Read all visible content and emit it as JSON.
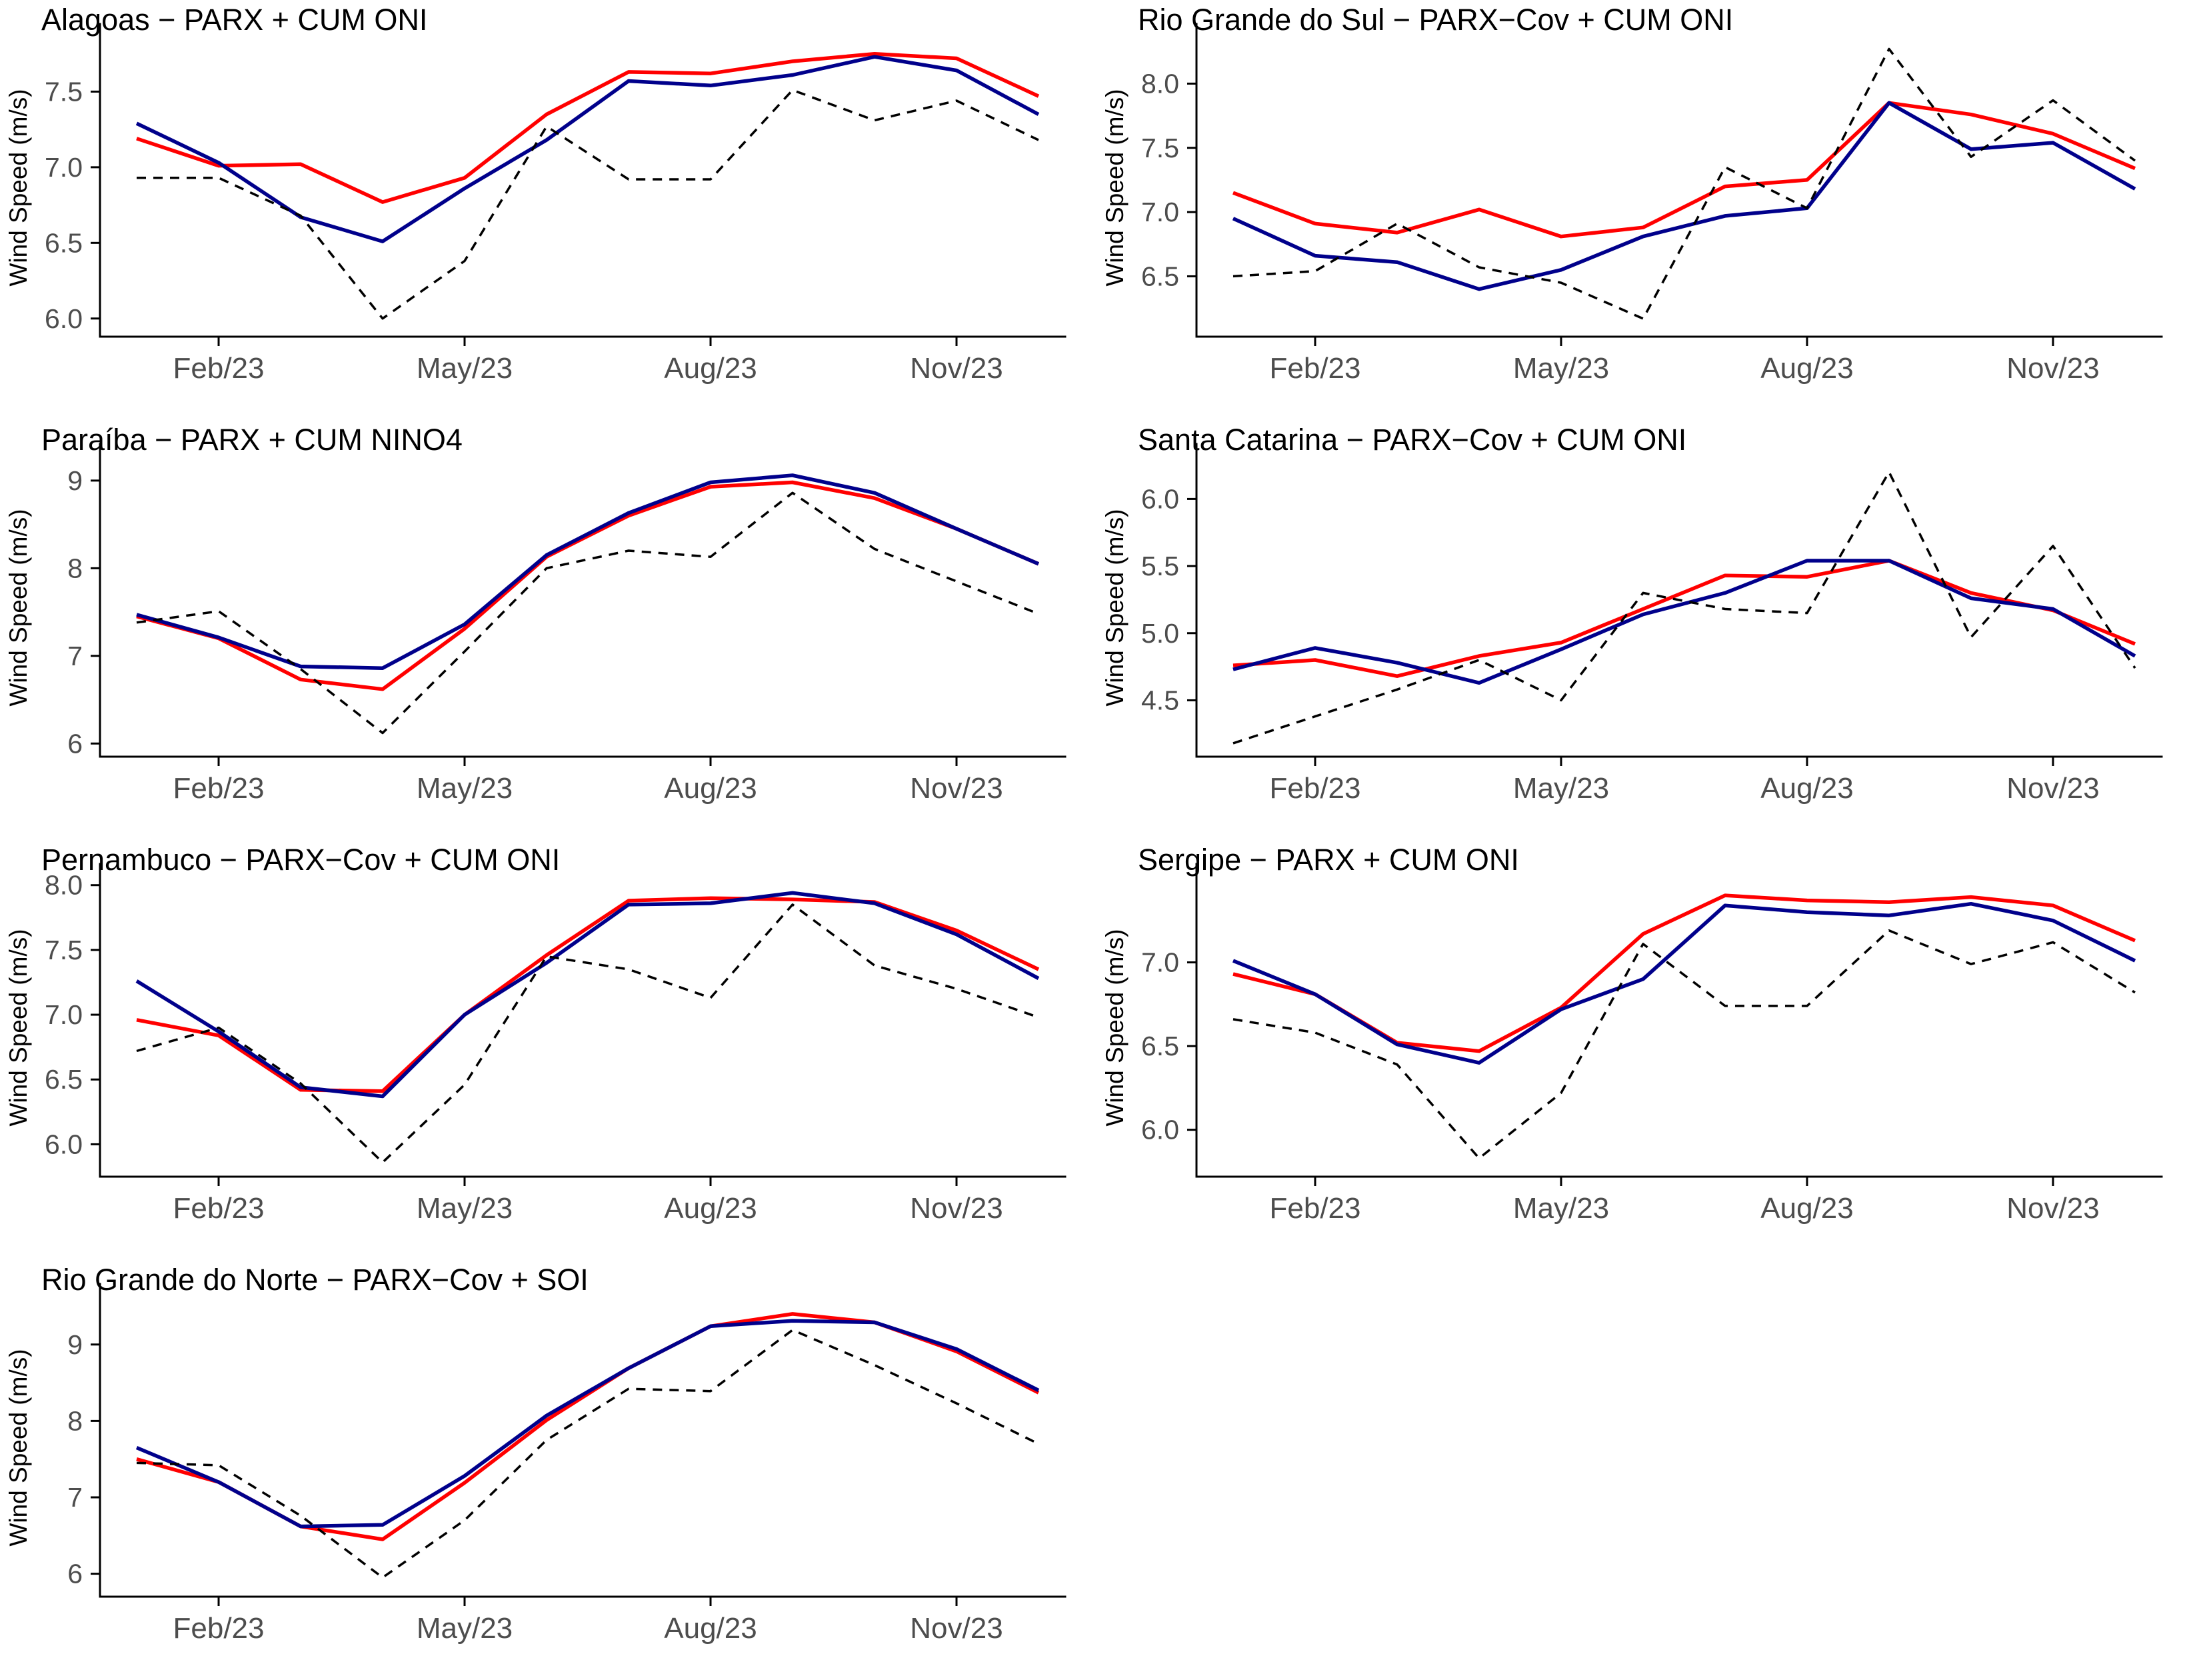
{
  "page": {
    "background": "#FFFFFF",
    "layout": "4x2 grid of line charts, last cell empty"
  },
  "colors": {
    "red_series": "#FF0000",
    "blue_series": "#00008B",
    "dashed_series": "#000000",
    "tick_text": "#4D4D4D",
    "title_text": "#000000",
    "axis_line": "#000000",
    "background": "#FFFFFF"
  },
  "chart_data": [
    {
      "id": "alagoas",
      "type": "line",
      "title": "Alagoas − PARX + CUM ONI",
      "ylabel": "Wind Speed (m/s)",
      "x": [
        "Jan/23",
        "Feb/23",
        "Mar/23",
        "Apr/23",
        "May/23",
        "Jun/23",
        "Jul/23",
        "Aug/23",
        "Sep/23",
        "Oct/23",
        "Nov/23",
        "Dec/23"
      ],
      "x_tick_indices": [
        1,
        4,
        7,
        10
      ],
      "x_tick_labels": [
        "Feb/23",
        "May/23",
        "Aug/23",
        "Nov/23"
      ],
      "ylim": [
        5.88,
        7.85
      ],
      "y_ticks": {
        "values": [
          6.0,
          6.5,
          7.0,
          7.5
        ],
        "labels": [
          "6.0",
          "6.5",
          "7.0",
          "7.5"
        ]
      },
      "grid": false,
      "legend": null,
      "series": [
        {
          "name": "red-solid",
          "color": "#FF0000",
          "style": "solid",
          "values": [
            7.19,
            7.01,
            7.02,
            6.77,
            6.93,
            7.35,
            7.63,
            7.62,
            7.7,
            7.75,
            7.72,
            7.47
          ]
        },
        {
          "name": "blue-solid",
          "color": "#00008B",
          "style": "solid",
          "values": [
            7.29,
            7.03,
            6.67,
            6.51,
            6.86,
            7.18,
            7.57,
            7.54,
            7.61,
            7.73,
            7.64,
            7.35
          ]
        },
        {
          "name": "black-dashed",
          "color": "#000000",
          "style": "dashed",
          "values": [
            6.93,
            6.93,
            6.68,
            6.0,
            6.38,
            7.27,
            6.92,
            6.92,
            7.51,
            7.31,
            7.44,
            7.18
          ]
        }
      ]
    },
    {
      "id": "rio-grande-do-sul",
      "type": "line",
      "title": "Rio Grande do Sul − PARX−Cov + CUM ONI",
      "ylabel": "Wind Speed (m/s)",
      "x": [
        "Jan/23",
        "Feb/23",
        "Mar/23",
        "Apr/23",
        "May/23",
        "Jun/23",
        "Jul/23",
        "Aug/23",
        "Sep/23",
        "Oct/23",
        "Nov/23",
        "Dec/23"
      ],
      "x_tick_indices": [
        1,
        4,
        7,
        10
      ],
      "x_tick_labels": [
        "Feb/23",
        "May/23",
        "Aug/23",
        "Nov/23"
      ],
      "ylim": [
        6.03,
        8.35
      ],
      "y_ticks": {
        "values": [
          6.5,
          7.0,
          7.5,
          8.0
        ],
        "labels": [
          "6.5",
          "7.0",
          "7.5",
          "8.0"
        ]
      },
      "grid": false,
      "legend": null,
      "series": [
        {
          "name": "red-solid",
          "color": "#FF0000",
          "style": "solid",
          "values": [
            7.15,
            6.91,
            6.84,
            7.02,
            6.81,
            6.88,
            7.2,
            7.25,
            7.85,
            7.76,
            7.61,
            7.34
          ]
        },
        {
          "name": "blue-solid",
          "color": "#00008B",
          "style": "solid",
          "values": [
            6.95,
            6.66,
            6.61,
            6.4,
            6.55,
            6.81,
            6.97,
            7.03,
            7.85,
            7.49,
            7.54,
            7.18
          ]
        },
        {
          "name": "black-dashed",
          "color": "#000000",
          "style": "dashed",
          "values": [
            6.5,
            6.54,
            6.91,
            6.57,
            6.45,
            6.17,
            7.35,
            7.03,
            8.27,
            7.43,
            7.87,
            7.4
          ]
        }
      ]
    },
    {
      "id": "paraiba",
      "type": "line",
      "title": "Paraíba − PARX + CUM NINO4",
      "ylabel": "Wind Speed (m/s)",
      "x": [
        "Jan/23",
        "Feb/23",
        "Mar/23",
        "Apr/23",
        "May/23",
        "Jun/23",
        "Jul/23",
        "Aug/23",
        "Sep/23",
        "Oct/23",
        "Nov/23",
        "Dec/23"
      ],
      "x_tick_indices": [
        1,
        4,
        7,
        10
      ],
      "x_tick_labels": [
        "Feb/23",
        "May/23",
        "Aug/23",
        "Nov/23"
      ],
      "ylim": [
        5.85,
        9.25
      ],
      "y_ticks": {
        "values": [
          6,
          7,
          8,
          9
        ],
        "labels": [
          "6",
          "7",
          "8",
          "9"
        ]
      },
      "grid": false,
      "legend": null,
      "series": [
        {
          "name": "red-solid",
          "color": "#FF0000",
          "style": "solid",
          "values": [
            7.45,
            7.2,
            6.73,
            6.62,
            7.31,
            8.13,
            8.6,
            8.93,
            8.98,
            8.8,
            8.45,
            8.05
          ]
        },
        {
          "name": "blue-solid",
          "color": "#00008B",
          "style": "solid",
          "values": [
            7.47,
            7.21,
            6.88,
            6.86,
            7.36,
            8.15,
            8.63,
            8.98,
            9.06,
            8.86,
            8.45,
            8.05
          ]
        },
        {
          "name": "black-dashed",
          "color": "#000000",
          "style": "dashed",
          "values": [
            7.38,
            7.51,
            6.85,
            6.12,
            7.05,
            8.0,
            8.2,
            8.13,
            8.86,
            8.22,
            7.85,
            7.48
          ]
        }
      ]
    },
    {
      "id": "santa-catarina",
      "type": "line",
      "title": "Santa Catarina − PARX−Cov + CUM ONI",
      "ylabel": "Wind Speed (m/s)",
      "x": [
        "Jan/23",
        "Feb/23",
        "Mar/23",
        "Apr/23",
        "May/23",
        "Jun/23",
        "Jul/23",
        "Aug/23",
        "Sep/23",
        "Oct/23",
        "Nov/23",
        "Dec/23"
      ],
      "x_tick_indices": [
        1,
        4,
        7,
        10
      ],
      "x_tick_labels": [
        "Feb/23",
        "May/23",
        "Aug/23",
        "Nov/23"
      ],
      "ylim": [
        4.08,
        6.3
      ],
      "y_ticks": {
        "values": [
          4.5,
          5.0,
          5.5,
          6.0
        ],
        "labels": [
          "4.5",
          "5.0",
          "5.5",
          "6.0"
        ]
      },
      "grid": false,
      "legend": null,
      "series": [
        {
          "name": "red-solid",
          "color": "#FF0000",
          "style": "solid",
          "values": [
            4.76,
            4.8,
            4.68,
            4.83,
            4.93,
            5.18,
            5.43,
            5.42,
            5.54,
            5.3,
            5.17,
            4.92
          ]
        },
        {
          "name": "blue-solid",
          "color": "#00008B",
          "style": "solid",
          "values": [
            4.73,
            4.89,
            4.78,
            4.63,
            4.88,
            5.14,
            5.3,
            5.54,
            5.54,
            5.26,
            5.18,
            4.83
          ]
        },
        {
          "name": "black-dashed",
          "color": "#000000",
          "style": "dashed",
          "values": [
            4.18,
            4.38,
            4.58,
            4.8,
            4.5,
            5.3,
            5.18,
            5.15,
            6.2,
            4.97,
            5.65,
            4.74
          ]
        }
      ]
    },
    {
      "id": "pernambuco",
      "type": "line",
      "title": "Pernambuco − PARX−Cov + CUM ONI",
      "ylabel": "Wind Speed (m/s)",
      "x": [
        "Jan/23",
        "Feb/23",
        "Mar/23",
        "Apr/23",
        "May/23",
        "Jun/23",
        "Jul/23",
        "Aug/23",
        "Sep/23",
        "Oct/23",
        "Nov/23",
        "Dec/23"
      ],
      "x_tick_indices": [
        1,
        4,
        7,
        10
      ],
      "x_tick_labels": [
        "Feb/23",
        "May/23",
        "Aug/23",
        "Nov/23"
      ],
      "ylim": [
        5.75,
        8.05
      ],
      "y_ticks": {
        "values": [
          6.0,
          6.5,
          7.0,
          7.5,
          8.0
        ],
        "labels": [
          "6.0",
          "6.5",
          "7.0",
          "7.5",
          "8.0"
        ]
      },
      "grid": false,
      "legend": null,
      "series": [
        {
          "name": "red-solid",
          "color": "#FF0000",
          "style": "solid",
          "values": [
            6.96,
            6.84,
            6.42,
            6.41,
            7.0,
            7.46,
            7.88,
            7.9,
            7.89,
            7.87,
            7.65,
            7.35
          ]
        },
        {
          "name": "blue-solid",
          "color": "#00008B",
          "style": "solid",
          "values": [
            7.26,
            6.87,
            6.44,
            6.37,
            7.0,
            7.4,
            7.85,
            7.86,
            7.94,
            7.86,
            7.62,
            7.28
          ]
        },
        {
          "name": "black-dashed",
          "color": "#000000",
          "style": "dashed",
          "values": [
            6.72,
            6.9,
            6.47,
            5.86,
            6.46,
            7.45,
            7.35,
            7.13,
            7.85,
            7.38,
            7.2,
            6.98
          ]
        }
      ]
    },
    {
      "id": "sergipe",
      "type": "line",
      "title": "Sergipe − PARX + CUM ONI",
      "ylabel": "Wind Speed (m/s)",
      "x": [
        "Jan/23",
        "Feb/23",
        "Mar/23",
        "Apr/23",
        "May/23",
        "Jun/23",
        "Jul/23",
        "Aug/23",
        "Sep/23",
        "Oct/23",
        "Nov/23",
        "Dec/23"
      ],
      "x_tick_indices": [
        1,
        4,
        7,
        10
      ],
      "x_tick_labels": [
        "Feb/23",
        "May/23",
        "Aug/23",
        "Nov/23"
      ],
      "ylim": [
        5.72,
        7.5
      ],
      "y_ticks": {
        "values": [
          6.0,
          6.5,
          7.0
        ],
        "labels": [
          "6.0",
          "6.5",
          "7.0"
        ]
      },
      "grid": false,
      "legend": null,
      "series": [
        {
          "name": "red-solid",
          "color": "#FF0000",
          "style": "solid",
          "values": [
            6.93,
            6.81,
            6.52,
            6.47,
            6.73,
            7.17,
            7.4,
            7.37,
            7.36,
            7.39,
            7.34,
            7.13
          ]
        },
        {
          "name": "blue-solid",
          "color": "#00008B",
          "style": "solid",
          "values": [
            7.01,
            6.81,
            6.51,
            6.4,
            6.72,
            6.9,
            7.34,
            7.3,
            7.28,
            7.35,
            7.25,
            7.01
          ]
        },
        {
          "name": "black-dashed",
          "color": "#000000",
          "style": "dashed",
          "values": [
            6.66,
            6.58,
            6.39,
            5.83,
            6.22,
            7.11,
            6.74,
            6.74,
            7.19,
            6.99,
            7.12,
            6.82
          ]
        }
      ]
    },
    {
      "id": "rio-grande-do-norte",
      "type": "line",
      "title": "Rio Grande do Norte − PARX−Cov + SOI",
      "ylabel": "Wind Speed (m/s)",
      "x": [
        "Jan/23",
        "Feb/23",
        "Mar/23",
        "Apr/23",
        "May/23",
        "Jun/23",
        "Jul/23",
        "Aug/23",
        "Sep/23",
        "Oct/23",
        "Nov/23",
        "Dec/23"
      ],
      "x_tick_indices": [
        1,
        4,
        7,
        10
      ],
      "x_tick_labels": [
        "Feb/23",
        "May/23",
        "Aug/23",
        "Nov/23"
      ],
      "ylim": [
        5.7,
        9.6
      ],
      "y_ticks": {
        "values": [
          6,
          7,
          8,
          9
        ],
        "labels": [
          "6",
          "7",
          "8",
          "9"
        ]
      },
      "grid": false,
      "legend": null,
      "series": [
        {
          "name": "red-solid",
          "color": "#FF0000",
          "style": "solid",
          "values": [
            7.5,
            7.2,
            6.62,
            6.45,
            7.19,
            8.01,
            8.69,
            9.24,
            9.4,
            9.29,
            8.91,
            8.37
          ]
        },
        {
          "name": "blue-solid",
          "color": "#00008B",
          "style": "solid",
          "values": [
            7.65,
            7.2,
            6.62,
            6.64,
            7.28,
            8.07,
            8.69,
            9.24,
            9.31,
            9.29,
            8.94,
            8.4
          ]
        },
        {
          "name": "black-dashed",
          "color": "#000000",
          "style": "dashed",
          "values": [
            7.45,
            7.42,
            6.76,
            5.95,
            6.7,
            7.75,
            8.42,
            8.39,
            9.19,
            8.73,
            8.23,
            7.7
          ]
        }
      ]
    }
  ]
}
